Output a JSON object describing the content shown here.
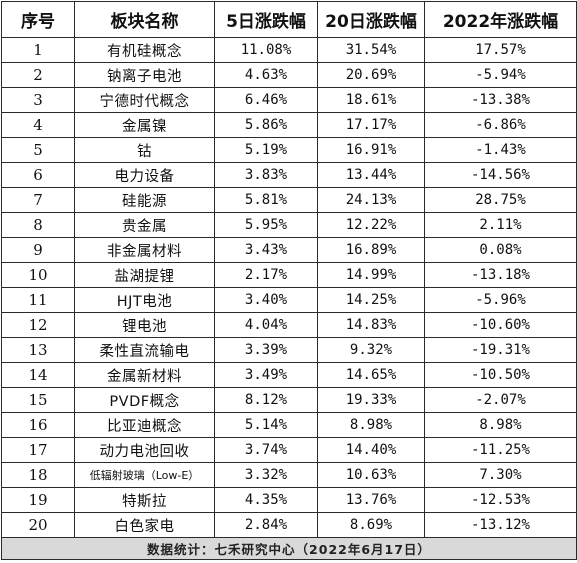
{
  "table": {
    "headers": [
      "序号",
      "板块名称",
      "5日涨跌幅",
      "20日涨跌幅",
      "2022年涨跌幅"
    ],
    "rows": [
      {
        "no": "1",
        "name": "有机硅概念",
        "d5": "11.08%",
        "d20": "31.54%",
        "ytd": "17.57%"
      },
      {
        "no": "2",
        "name": "钠离子电池",
        "d5": "4.63%",
        "d20": "20.69%",
        "ytd": "-5.94%"
      },
      {
        "no": "3",
        "name": "宁德时代概念",
        "d5": "6.46%",
        "d20": "18.61%",
        "ytd": "-13.38%"
      },
      {
        "no": "4",
        "name": "金属镍",
        "d5": "5.86%",
        "d20": "17.17%",
        "ytd": "-6.86%"
      },
      {
        "no": "5",
        "name": "钴",
        "d5": "5.19%",
        "d20": "16.91%",
        "ytd": "-1.43%"
      },
      {
        "no": "6",
        "name": "电力设备",
        "d5": "3.83%",
        "d20": "13.44%",
        "ytd": "-14.56%"
      },
      {
        "no": "7",
        "name": "硅能源",
        "d5": "5.81%",
        "d20": "24.13%",
        "ytd": "28.75%"
      },
      {
        "no": "8",
        "name": "贵金属",
        "d5": "5.95%",
        "d20": "12.22%",
        "ytd": "2.11%"
      },
      {
        "no": "9",
        "name": "非金属材料",
        "d5": "3.43%",
        "d20": "16.89%",
        "ytd": "0.08%"
      },
      {
        "no": "10",
        "name": "盐湖提锂",
        "d5": "2.17%",
        "d20": "14.99%",
        "ytd": "-13.18%"
      },
      {
        "no": "11",
        "name": "HJT电池",
        "d5": "3.40%",
        "d20": "14.25%",
        "ytd": "-5.96%"
      },
      {
        "no": "12",
        "name": "锂电池",
        "d5": "4.04%",
        "d20": "14.83%",
        "ytd": "-10.60%"
      },
      {
        "no": "13",
        "name": "柔性直流输电",
        "d5": "3.39%",
        "d20": "9.32%",
        "ytd": "-19.31%"
      },
      {
        "no": "14",
        "name": "金属新材料",
        "d5": "3.49%",
        "d20": "14.65%",
        "ytd": "-10.50%"
      },
      {
        "no": "15",
        "name": "PVDF概念",
        "d5": "8.12%",
        "d20": "19.33%",
        "ytd": "-2.07%"
      },
      {
        "no": "16",
        "name": "比亚迪概念",
        "d5": "5.14%",
        "d20": "8.98%",
        "ytd": "8.98%"
      },
      {
        "no": "17",
        "name": "动力电池回收",
        "d5": "3.74%",
        "d20": "14.40%",
        "ytd": "-11.25%"
      },
      {
        "no": "18",
        "name": "低辐射玻璃（Low-E）",
        "d5": "3.32%",
        "d20": "10.63%",
        "ytd": "7.30%"
      },
      {
        "no": "19",
        "name": "特斯拉",
        "d5": "4.35%",
        "d20": "13.76%",
        "ytd": "-12.53%"
      },
      {
        "no": "20",
        "name": "白色家电",
        "d5": "2.84%",
        "d20": "8.69%",
        "ytd": "-13.12%"
      }
    ],
    "footer": "数据统计：七禾研究中心（2022年6月17日）"
  }
}
